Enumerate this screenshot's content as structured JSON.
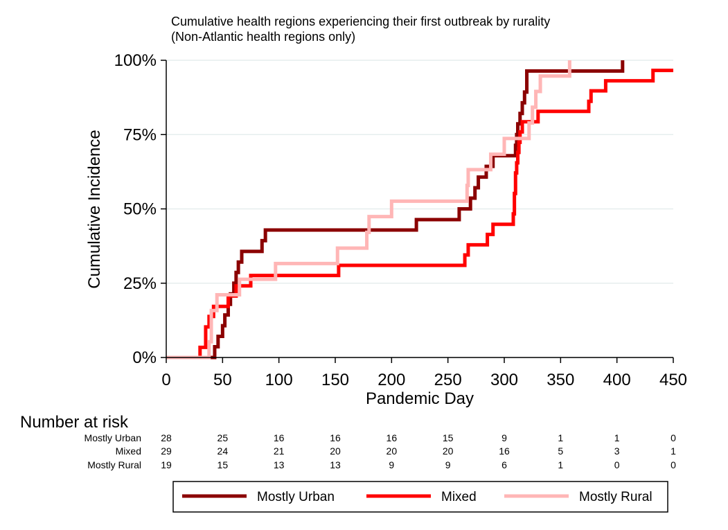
{
  "chart_data": {
    "type": "line",
    "step": true,
    "title": "Cumulative health regions experiencing their first outbreak by rurality",
    "subtitle": "(Non-Atlantic health regions only)",
    "xlabel": "Pandemic Day",
    "ylabel": "Cumulative Incidence",
    "xlim": [
      0,
      450
    ],
    "ylim": [
      0,
      100
    ],
    "xticks": [
      0,
      50,
      100,
      150,
      200,
      250,
      300,
      350,
      400,
      450
    ],
    "xtick_labels": [
      "0",
      "50",
      "100",
      "150",
      "200",
      "250",
      "300",
      "350",
      "400",
      "450"
    ],
    "yticks": [
      0,
      25,
      50,
      75,
      100
    ],
    "ytick_labels": [
      "0%",
      "25%",
      "50%",
      "75%",
      "100%"
    ],
    "grid": "horizontal",
    "series": [
      {
        "name": "Mostly Urban",
        "color": "#8b0000",
        "x": [
          0,
          38,
          43,
          46,
          50,
          52,
          55,
          57,
          60,
          62,
          64,
          67,
          85,
          88,
          220,
          222,
          258,
          260,
          270,
          274,
          277,
          284,
          290,
          308,
          310,
          311,
          312,
          314,
          316,
          318,
          320,
          404,
          405
        ],
        "y": [
          0,
          0,
          3.6,
          7.1,
          10.7,
          14.3,
          17.9,
          21.4,
          25,
          28.6,
          32.1,
          35.7,
          39.3,
          42.9,
          42.9,
          46.4,
          46.4,
          50,
          53.6,
          57.1,
          60.7,
          64.3,
          67.9,
          67.9,
          71.4,
          75,
          78.6,
          82.1,
          85.7,
          89.3,
          96.4,
          96.4,
          100
        ]
      },
      {
        "name": "Mixed",
        "color": "#ff0000",
        "x": [
          0,
          30,
          35,
          38,
          42,
          50,
          55,
          60,
          62,
          67,
          70,
          75,
          150,
          153,
          265,
          268,
          272,
          285,
          290,
          308,
          309,
          310,
          311,
          312,
          313,
          314,
          315,
          316,
          318,
          330,
          333,
          375,
          377,
          390,
          432,
          435,
          450
        ],
        "y": [
          0,
          3.4,
          10.3,
          13.8,
          17.2,
          17.2,
          20.7,
          20.7,
          24.1,
          24.1,
          24.1,
          27.6,
          27.6,
          31,
          34.5,
          37.9,
          37.9,
          41.4,
          44.8,
          48.3,
          55.2,
          62.1,
          65.5,
          69,
          72.4,
          75.9,
          75.9,
          79.3,
          79.3,
          82.8,
          82.8,
          86.2,
          89.7,
          93.1,
          96.6,
          96.6,
          96.6
        ]
      },
      {
        "name": "Mostly Rural",
        "color": "#ffb6b6",
        "x": [
          0,
          35,
          38,
          40,
          45,
          52,
          58,
          65,
          70,
          97,
          150,
          152,
          178,
          180,
          198,
          200,
          265,
          267,
          268,
          285,
          288,
          295,
          300,
          320,
          322,
          325,
          328,
          332,
          355,
          358
        ],
        "y": [
          0,
          0,
          5.3,
          15.8,
          21.1,
          21.1,
          21.1,
          26.3,
          26.3,
          31.6,
          31.6,
          36.8,
          42.1,
          47.4,
          47.4,
          52.6,
          52.6,
          57.9,
          63.2,
          63.2,
          68.4,
          68.4,
          73.7,
          73.7,
          78.9,
          84.2,
          89.5,
          94.7,
          94.7,
          100
        ]
      }
    ],
    "risk_table": {
      "title": "Number at risk",
      "times": [
        0,
        50,
        100,
        150,
        200,
        250,
        300,
        350,
        400,
        450
      ],
      "rows": [
        {
          "label": "Mostly Urban",
          "values": [
            "28",
            "25",
            "16",
            "16",
            "16",
            "15",
            "9",
            "1",
            "1",
            "0"
          ]
        },
        {
          "label": "Mixed",
          "values": [
            "29",
            "24",
            "21",
            "20",
            "20",
            "20",
            "16",
            "5",
            "3",
            "1"
          ]
        },
        {
          "label": "Mostly Rural",
          "values": [
            "19",
            "15",
            "13",
            "13",
            "9",
            "9",
            "6",
            "1",
            "0",
            "0"
          ]
        }
      ]
    },
    "legend": {
      "position": "bottom",
      "items": [
        "Mostly Urban",
        "Mixed",
        "Mostly Rural"
      ]
    }
  }
}
